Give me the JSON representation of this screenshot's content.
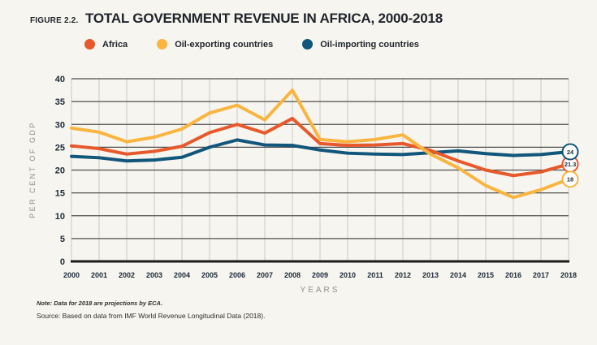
{
  "figure": {
    "label": "FIGURE 2.2.",
    "title": "TOTAL GOVERNMENT REVENUE IN AFRICA, 2000-2018"
  },
  "chart_data": {
    "type": "line",
    "title": "TOTAL GOVERNMENT REVENUE IN AFRICA, 2000-2018",
    "xlabel": "YEARS",
    "ylabel": "PER CENT OF GDP",
    "ylim": [
      0,
      40
    ],
    "ytick_step": 5,
    "grid": {
      "horizontal": "dark solid every 5 units",
      "vertical": "light solid every year"
    },
    "legend_position": "top",
    "categories": [
      "2000",
      "2001",
      "2002",
      "2003",
      "2004",
      "2005",
      "2006",
      "2007",
      "2008",
      "2009",
      "2010",
      "2011",
      "2012",
      "2013",
      "2014",
      "2015",
      "2016",
      "2017",
      "2018"
    ],
    "series": [
      {
        "name": "Africa",
        "color": "#E7592B",
        "end_label": "21.3",
        "values": [
          25.3,
          24.7,
          23.5,
          24.1,
          25.2,
          28.2,
          30,
          28.1,
          31.3,
          25.8,
          25.4,
          25.5,
          25.8,
          24.3,
          22,
          20,
          18.8,
          19.6,
          21.3
        ]
      },
      {
        "name": "Oil-exporting countries",
        "color": "#FAB440",
        "end_label": "18",
        "values": [
          29.2,
          28.3,
          26.2,
          27.2,
          29,
          32.5,
          34.2,
          31,
          37.5,
          26.7,
          26.2,
          26.7,
          27.7,
          23.5,
          20.5,
          16.6,
          14,
          15.7,
          18
        ]
      },
      {
        "name": "Oil-importing countries",
        "color": "#11567B",
        "end_label": "24",
        "values": [
          23,
          22.7,
          22,
          22.2,
          22.8,
          25,
          26.6,
          25.5,
          25.4,
          24.4,
          23.7,
          23.5,
          23.4,
          23.8,
          24.2,
          23.6,
          23.2,
          23.4,
          24
        ]
      }
    ],
    "draw_order": [
      2,
      0,
      1
    ],
    "theme": {
      "background": "#F6F5EF",
      "grid_horizontal": "#4F4F4F",
      "grid_vertical": "#D2D2CB",
      "axis_line": "#1A1A1A",
      "tick_text": "#1C2A3A",
      "axis_title_text": "#90908C"
    }
  },
  "footer": {
    "note": "Note: Data for 2018 are projections by ECA.",
    "source": "Source: Based on data from IMF World Revenue Longitudinal Data (2018)."
  }
}
